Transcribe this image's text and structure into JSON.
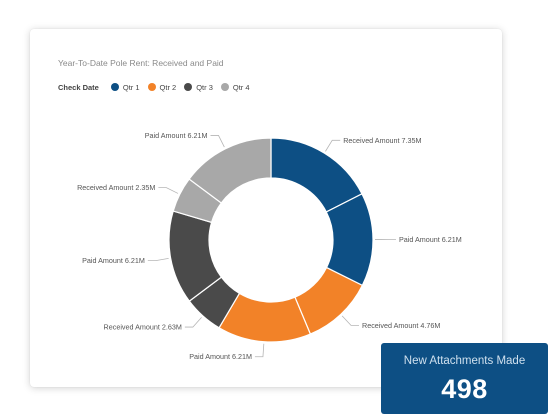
{
  "chart_data": {
    "type": "pie",
    "title": "Year-To-Date Pole Rent: Received and Paid",
    "legend_title": "Check Date",
    "legend": [
      {
        "label": "Qtr 1",
        "color": "#0d4f84"
      },
      {
        "label": "Qtr 2",
        "color": "#f28228"
      },
      {
        "label": "Qtr 3",
        "color": "#4a4a4a"
      },
      {
        "label": "Qtr 4",
        "color": "#a8a8a8"
      }
    ],
    "slices": [
      {
        "label": "Received Amount 7.35M",
        "value": 7.35,
        "quarter": "Qtr 1",
        "color": "#0d4f84"
      },
      {
        "label": "Paid Amount 6.21M",
        "value": 6.21,
        "quarter": "Qtr 1",
        "color": "#0d4f84"
      },
      {
        "label": "Received Amount 4.76M",
        "value": 4.76,
        "quarter": "Qtr 2",
        "color": "#f28228"
      },
      {
        "label": "Paid Amount 6.21M",
        "value": 6.21,
        "quarter": "Qtr 2",
        "color": "#f28228"
      },
      {
        "label": "Received Amount 2.63M",
        "value": 2.63,
        "quarter": "Qtr 3",
        "color": "#4a4a4a"
      },
      {
        "label": "Paid Amount 6.21M",
        "value": 6.21,
        "quarter": "Qtr 3",
        "color": "#4a4a4a"
      },
      {
        "label": "Received Amount 2.35M",
        "value": 2.35,
        "quarter": "Qtr 4",
        "color": "#a8a8a8"
      },
      {
        "label": "Paid Amount 6.21M",
        "value": 6.21,
        "quarter": "Qtr 4",
        "color": "#a8a8a8"
      }
    ]
  },
  "kpi": {
    "label": "New Attachments Made",
    "value": "498",
    "color": "#0d4f84"
  }
}
